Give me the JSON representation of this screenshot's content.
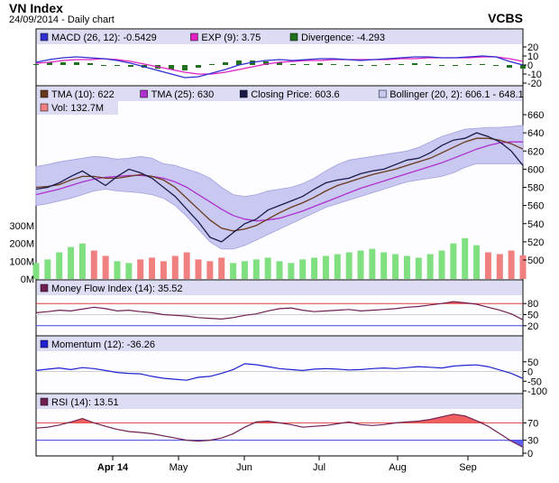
{
  "header": {
    "title": "VN Index",
    "subtitle": "24/09/2014 - Daily chart",
    "brand": "VCBS"
  },
  "colors": {
    "panel_bg": "#fdfdff",
    "legend_bg": "#dcdcf4",
    "band_fill": "#c8c8f0",
    "price": "#1a1a4a",
    "tma10": "#6b3a1c",
    "tma25": "#b030d0",
    "macd": "#3030d0",
    "exp": "#e020c0",
    "divergence": "#207020",
    "vol_up": "#80e080",
    "vol_down": "#f08080",
    "mfi": "#702050",
    "momentum": "#2020d0",
    "rsi": "#702050",
    "level_line": "#e04040",
    "low_line": "#4040e0"
  },
  "x_axis": {
    "labels": [
      "Apr 14",
      "May",
      "Jun",
      "Jul",
      "Aug",
      "Sep"
    ]
  },
  "chart_data": [
    {
      "type": "line",
      "panel": "macd",
      "legend": [
        {
          "label": "MACD (26, 12): -0.5429",
          "swatch": "#3030d0"
        },
        {
          "label": "EXP (9): 3.75",
          "swatch": "#e020c0"
        },
        {
          "label": "Divergence: -4.293",
          "swatch": "#207020"
        }
      ],
      "ylim": [
        -20,
        20
      ],
      "y_ticks": [
        "20",
        "10",
        "0",
        "-10",
        "-20"
      ],
      "series": [
        {
          "name": "MACD (26, 12)",
          "values": [
            3,
            6,
            8,
            9,
            8,
            7,
            5,
            2,
            -2,
            -6,
            -10,
            -14,
            -13,
            -9,
            -5,
            0,
            3,
            5,
            6,
            5,
            6,
            7,
            7,
            6,
            5,
            6,
            7,
            8,
            9,
            9,
            8,
            8,
            9,
            10,
            9,
            4,
            0
          ]
        },
        {
          "name": "EXP (9)",
          "values": [
            2,
            3,
            5,
            6,
            6,
            7,
            6,
            4,
            1,
            -2,
            -5,
            -8,
            -10,
            -10,
            -8,
            -5,
            -2,
            1,
            3,
            4,
            5,
            5,
            6,
            6,
            6,
            6,
            6,
            7,
            7,
            8,
            8,
            8,
            8,
            9,
            9,
            7,
            4
          ]
        },
        {
          "name": "Divergence",
          "values": [
            1,
            3,
            3,
            3,
            2,
            0,
            -1,
            -2,
            -3,
            -4,
            -5,
            -6,
            -3,
            1,
            3,
            5,
            5,
            4,
            3,
            1,
            1,
            2,
            1,
            0,
            -1,
            0,
            1,
            1,
            2,
            1,
            0,
            0,
            1,
            1,
            0,
            -3,
            -4
          ]
        }
      ]
    },
    {
      "type": "line",
      "panel": "price",
      "legend": [
        {
          "label": "TMA (10): 622",
          "swatch": "#6b3a1c"
        },
        {
          "label": "TMA (25): 630",
          "swatch": "#b030d0"
        },
        {
          "label": "Closing Price: 603.6",
          "swatch": "#1a1a4a"
        },
        {
          "label": "Bollinger (20, 2): 606.1 - 648.1",
          "swatch": "#c8c8f0"
        },
        {
          "label": "Vol: 132.7M",
          "swatch": "#f08080"
        }
      ],
      "ylim": [
        500,
        660
      ],
      "y_ticks": [
        "660",
        "640",
        "620",
        "600",
        "580",
        "560",
        "540",
        "520",
        "500"
      ],
      "vol_ylim": [
        0,
        300
      ],
      "vol_ticks": [
        "300M",
        "200M",
        "100M",
        "0M"
      ],
      "series": [
        {
          "name": "Closing Price",
          "values": [
            578,
            580,
            585,
            592,
            598,
            590,
            582,
            592,
            600,
            596,
            590,
            580,
            570,
            556,
            542,
            525,
            520,
            530,
            540,
            545,
            555,
            560,
            565,
            570,
            578,
            585,
            588,
            590,
            595,
            598,
            600,
            605,
            610,
            612,
            618,
            626,
            632,
            634,
            640,
            636,
            630,
            620,
            604
          ]
        },
        {
          "name": "TMA (10)",
          "values": [
            580,
            581,
            583,
            588,
            592,
            592,
            590,
            590,
            592,
            594,
            592,
            588,
            580,
            568,
            556,
            544,
            535,
            532,
            534,
            538,
            545,
            552,
            558,
            563,
            569,
            576,
            582,
            586,
            590,
            594,
            597,
            600,
            604,
            608,
            612,
            618,
            624,
            630,
            634,
            634,
            632,
            628,
            622
          ]
        },
        {
          "name": "TMA (25)",
          "values": [
            572,
            575,
            578,
            582,
            586,
            589,
            591,
            592,
            593,
            593,
            592,
            590,
            586,
            580,
            572,
            564,
            556,
            549,
            545,
            543,
            544,
            546,
            550,
            554,
            559,
            564,
            569,
            574,
            579,
            583,
            587,
            591,
            595,
            599,
            603,
            607,
            612,
            617,
            622,
            626,
            629,
            630,
            630
          ]
        },
        {
          "name": "Bollinger Upper",
          "values": [
            603,
            605,
            608,
            610,
            612,
            614,
            613,
            611,
            612,
            614,
            612,
            606,
            604,
            600,
            596,
            590,
            580,
            572,
            570,
            572,
            576,
            578,
            580,
            584,
            590,
            598,
            605,
            610,
            612,
            614,
            616,
            618,
            620,
            624,
            630,
            636,
            640,
            644,
            645,
            646,
            646,
            647,
            648
          ]
        },
        {
          "name": "Bollinger Lower",
          "values": [
            560,
            562,
            565,
            568,
            572,
            576,
            578,
            576,
            575,
            574,
            572,
            568,
            560,
            548,
            534,
            520,
            512,
            512,
            516,
            522,
            528,
            534,
            540,
            546,
            552,
            558,
            562,
            566,
            570,
            574,
            578,
            582,
            586,
            588,
            590,
            592,
            596,
            602,
            606,
            606,
            606,
            606,
            606
          ]
        },
        {
          "name": "Vol",
          "values": [
            90,
            110,
            150,
            180,
            200,
            160,
            130,
            100,
            90,
            110,
            120,
            100,
            130,
            150,
            110,
            100,
            120,
            90,
            100,
            110,
            120,
            100,
            90,
            110,
            120,
            130,
            140,
            150,
            160,
            170,
            150,
            140,
            130,
            120,
            140,
            160,
            200,
            230,
            190,
            150,
            140,
            160,
            133
          ]
        }
      ]
    },
    {
      "type": "line",
      "panel": "mfi",
      "legend": [
        {
          "label": "Money Flow Index (14): 35.52",
          "swatch": "#702050"
        }
      ],
      "ylim": [
        0,
        100
      ],
      "y_ticks": [
        "80",
        "50",
        "20"
      ],
      "series": [
        {
          "name": "Money Flow Index (14)",
          "values": [
            55,
            58,
            62,
            60,
            65,
            70,
            66,
            60,
            62,
            58,
            55,
            50,
            48,
            46,
            42,
            40,
            38,
            42,
            48,
            52,
            60,
            66,
            68,
            62,
            58,
            60,
            62,
            64,
            60,
            62,
            64,
            66,
            70,
            72,
            76,
            80,
            85,
            82,
            78,
            70,
            62,
            52,
            36
          ]
        }
      ]
    },
    {
      "type": "line",
      "panel": "momentum",
      "legend": [
        {
          "label": "Momentum (12): -36.26",
          "swatch": "#2020d0"
        }
      ],
      "ylim": [
        -100,
        100
      ],
      "y_ticks": [
        "50",
        "0",
        "-50",
        "-100"
      ],
      "series": [
        {
          "name": "Momentum (12)",
          "values": [
            5,
            12,
            18,
            10,
            20,
            15,
            5,
            -5,
            -10,
            -12,
            -25,
            -35,
            -40,
            -45,
            -30,
            -25,
            -10,
            10,
            40,
            35,
            25,
            15,
            10,
            5,
            12,
            15,
            12,
            8,
            10,
            15,
            18,
            15,
            20,
            25,
            22,
            18,
            28,
            32,
            34,
            25,
            8,
            -10,
            -36
          ]
        }
      ]
    },
    {
      "type": "line",
      "panel": "rsi",
      "legend": [
        {
          "label": "RSI (14): 13.51",
          "swatch": "#702050"
        }
      ],
      "ylim": [
        0,
        100
      ],
      "y_ticks": [
        "70",
        "30",
        "0"
      ],
      "series": [
        {
          "name": "RSI (14)",
          "values": [
            58,
            60,
            65,
            72,
            80,
            70,
            62,
            55,
            50,
            48,
            45,
            40,
            35,
            30,
            28,
            30,
            35,
            45,
            60,
            72,
            74,
            70,
            66,
            60,
            62,
            64,
            68,
            72,
            66,
            64,
            66,
            70,
            72,
            74,
            78,
            84,
            90,
            86,
            75,
            62,
            45,
            28,
            14
          ]
        }
      ]
    }
  ]
}
